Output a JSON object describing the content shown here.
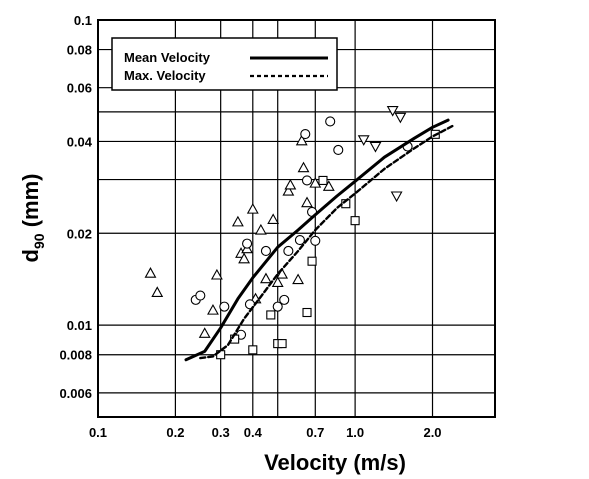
{
  "chart_data": {
    "type": "scatter",
    "title": "",
    "xlabel": "Velocity (m/s)",
    "ylabel_main": "d",
    "ylabel_sub": "90",
    "ylabel_unit": " (mm)",
    "x_scale": "log",
    "y_scale": "log",
    "xlim": [
      0.1,
      3.5
    ],
    "ylim": [
      0.005,
      0.1
    ],
    "grid": true,
    "legend_position": "top-left",
    "x_ticks": [
      {
        "value": 0.1,
        "label": "0.1"
      },
      {
        "value": 0.2,
        "label": "0.2"
      },
      {
        "value": 0.3,
        "label": "0.3"
      },
      {
        "value": 0.4,
        "label": "0.4"
      },
      {
        "value": 0.7,
        "label": "0.7"
      },
      {
        "value": 1.0,
        "label": "1.0"
      },
      {
        "value": 2.0,
        "label": "2.0"
      }
    ],
    "x_grid": [
      0.2,
      0.3,
      0.4,
      0.5,
      0.7,
      1.0,
      2.0
    ],
    "y_ticks": [
      {
        "value": 0.006,
        "label": "0.006"
      },
      {
        "value": 0.008,
        "label": "0.008"
      },
      {
        "value": 0.01,
        "label": "0.01"
      },
      {
        "value": 0.02,
        "label": "0.02"
      },
      {
        "value": 0.04,
        "label": "0.04"
      },
      {
        "value": 0.06,
        "label": "0.06"
      },
      {
        "value": 0.08,
        "label": "0.08"
      },
      {
        "value": 0.1,
        "label": "0.1"
      }
    ],
    "y_grid": [
      0.006,
      0.008,
      0.01,
      0.02,
      0.03,
      0.04,
      0.05,
      0.06,
      0.08,
      0.1
    ],
    "series": [
      {
        "name": "Mean Velocity",
        "style": "solid",
        "x": [
          0.22,
          0.26,
          0.3,
          0.35,
          0.4,
          0.5,
          0.6,
          0.7,
          0.85,
          1.0,
          1.3,
          1.7,
          2.0,
          2.3
        ],
        "y": [
          0.0077,
          0.0082,
          0.0098,
          0.0122,
          0.0143,
          0.018,
          0.0205,
          0.023,
          0.0265,
          0.0296,
          0.0355,
          0.041,
          0.0445,
          0.047
        ]
      },
      {
        "name": "Max. Velocity",
        "style": "dashed",
        "x": [
          0.25,
          0.28,
          0.32,
          0.37,
          0.43,
          0.5,
          0.6,
          0.7,
          0.85,
          1.0,
          1.3,
          1.7,
          2.0,
          2.4
        ],
        "y": [
          0.0078,
          0.0079,
          0.0086,
          0.0105,
          0.0124,
          0.0147,
          0.0175,
          0.0205,
          0.0242,
          0.027,
          0.0325,
          0.038,
          0.0415,
          0.045
        ]
      }
    ],
    "markers": {
      "triangle": {
        "x": [
          0.16,
          0.17,
          0.26,
          0.28,
          0.29,
          0.35,
          0.36,
          0.37,
          0.38,
          0.4,
          0.41,
          0.43,
          0.45,
          0.48,
          0.5,
          0.52,
          0.55,
          0.56,
          0.6,
          0.62,
          0.63,
          0.65,
          0.7,
          0.79
        ],
        "y": [
          0.0148,
          0.0128,
          0.0094,
          0.0112,
          0.0146,
          0.0218,
          0.0172,
          0.0165,
          0.0178,
          0.024,
          0.0122,
          0.0205,
          0.0142,
          0.0222,
          0.0138,
          0.0147,
          0.0275,
          0.0288,
          0.0141,
          0.0402,
          0.0328,
          0.0252,
          0.0292,
          0.0285
        ]
      },
      "circle": {
        "x": [
          0.24,
          0.25,
          0.31,
          0.36,
          0.38,
          0.39,
          0.45,
          0.5,
          0.53,
          0.55,
          0.61,
          0.64,
          0.65,
          0.68,
          0.7,
          0.8,
          0.86,
          1.6
        ],
        "y": [
          0.0121,
          0.0125,
          0.0115,
          0.0093,
          0.0185,
          0.0117,
          0.0175,
          0.0115,
          0.0121,
          0.0175,
          0.019,
          0.0423,
          0.0298,
          0.0235,
          0.0189,
          0.0465,
          0.0375,
          0.0385
        ]
      },
      "square": {
        "x": [
          0.3,
          0.34,
          0.4,
          0.47,
          0.5,
          0.52,
          0.65,
          0.68,
          0.75,
          0.92,
          1.0,
          2.05
        ],
        "y": [
          0.008,
          0.009,
          0.0083,
          0.0108,
          0.0087,
          0.0087,
          0.011,
          0.0162,
          0.0298,
          0.025,
          0.022,
          0.0422
        ]
      },
      "triangle_down": {
        "x": [
          1.08,
          1.2,
          1.4,
          1.5,
          1.45
        ],
        "y": [
          0.0405,
          0.0385,
          0.0505,
          0.048,
          0.0265
        ]
      }
    }
  }
}
